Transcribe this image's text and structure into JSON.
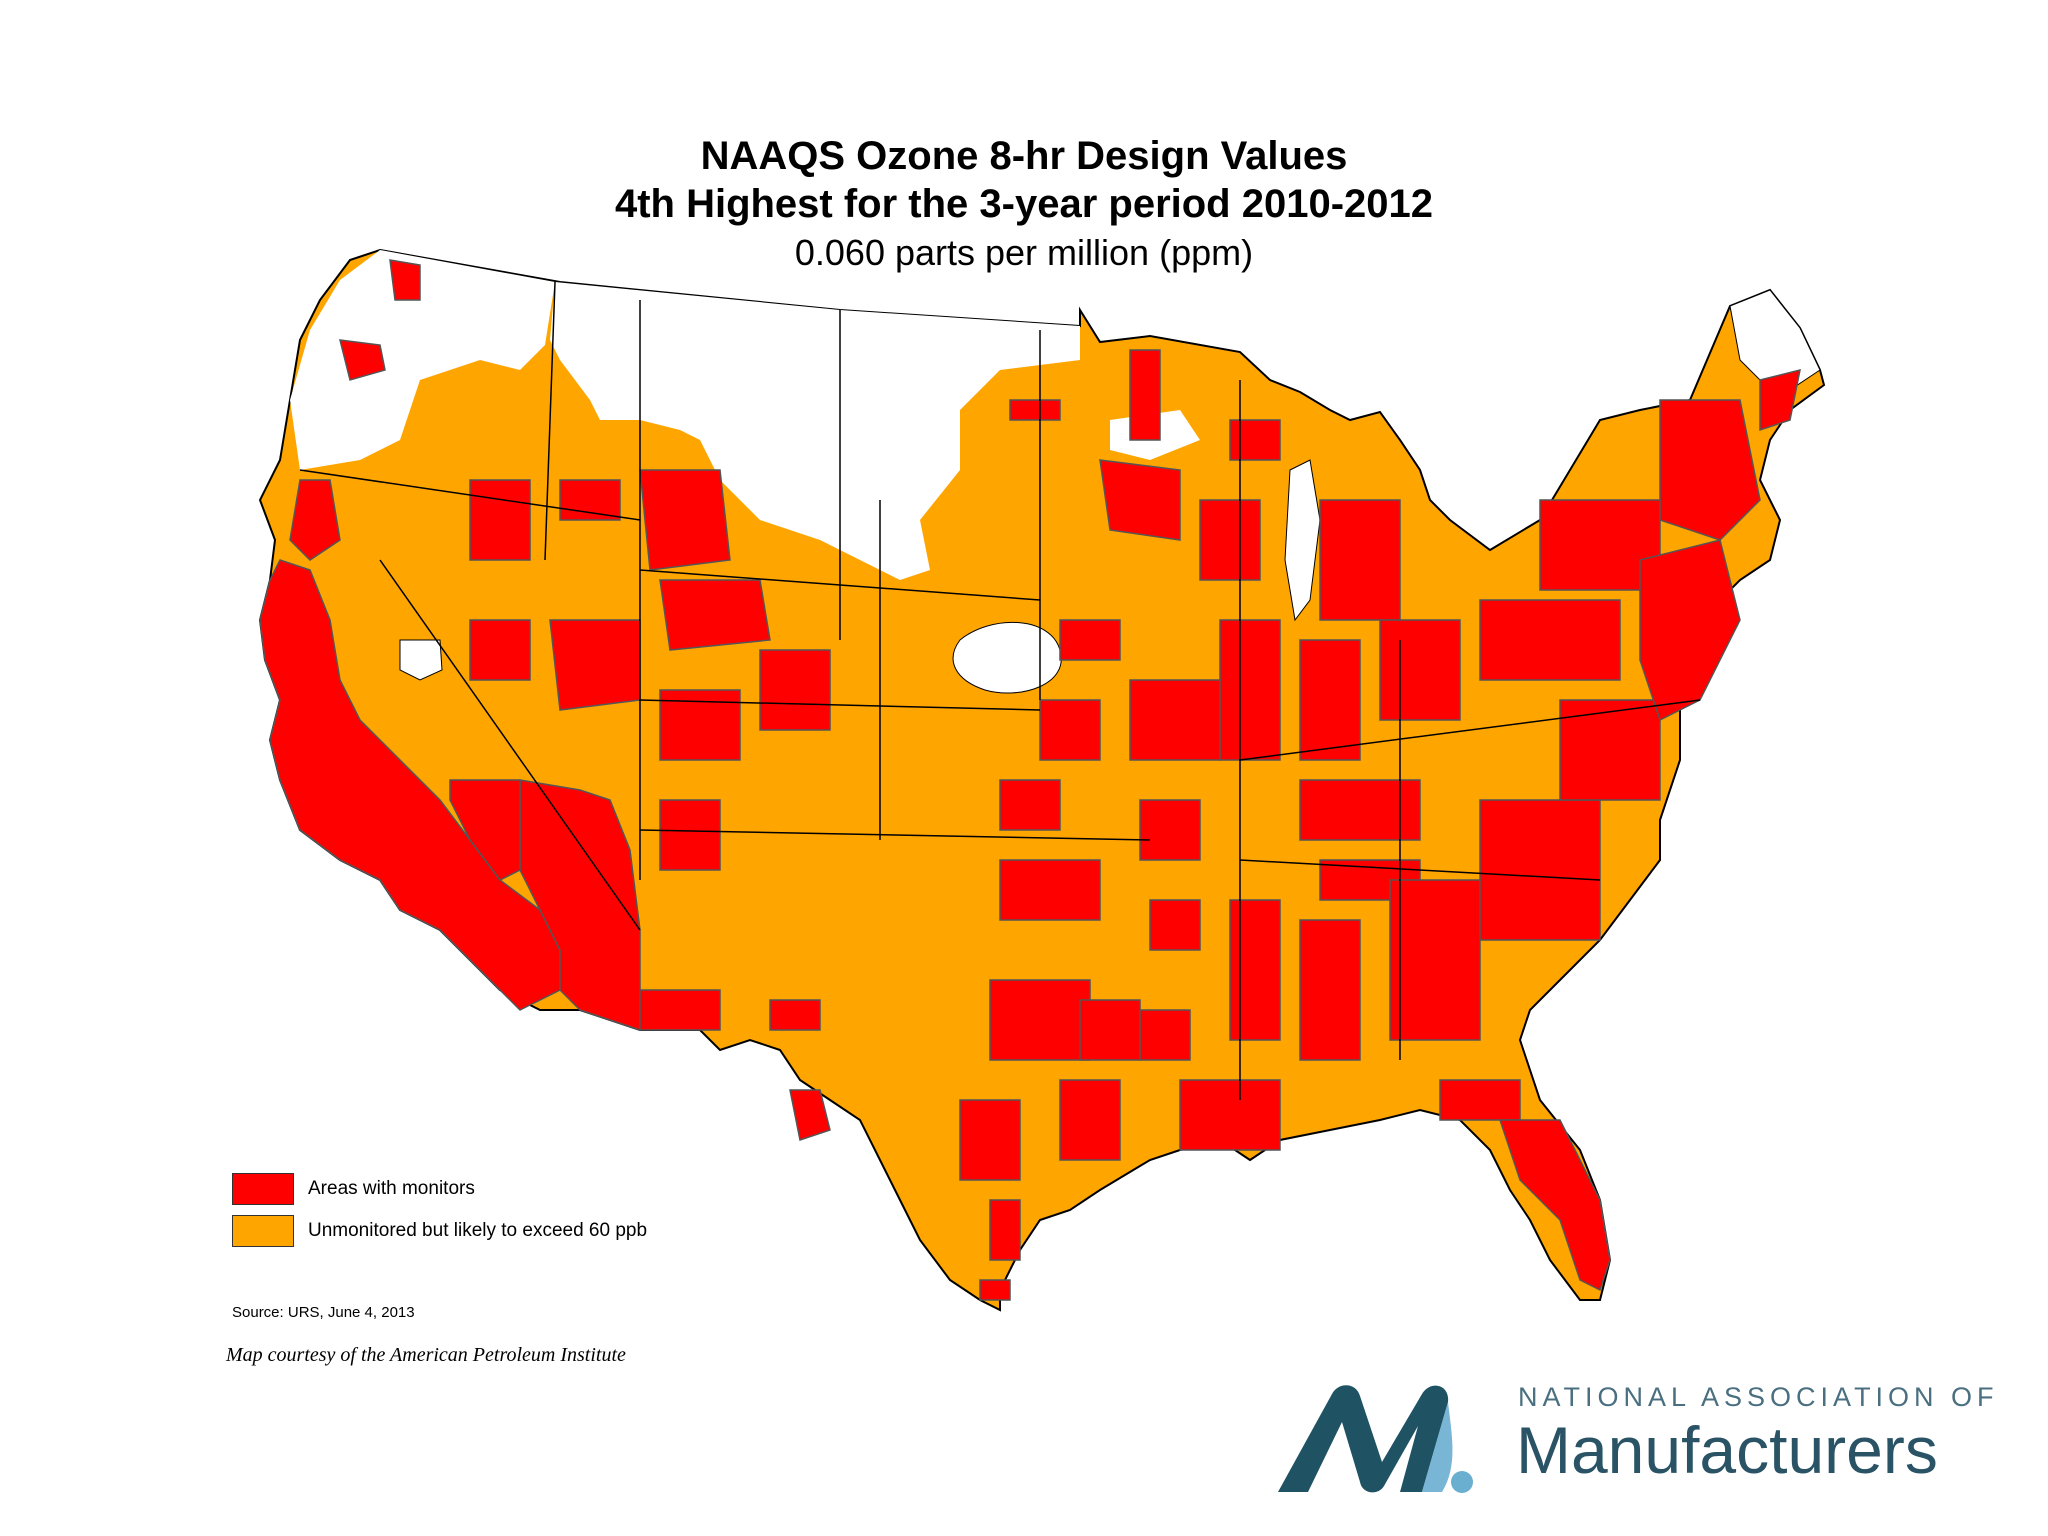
{
  "map": {
    "title": "NAAQS Ozone 8-hr Design Values",
    "title_line2": "4th Highest for the 3-year period 2010-2012",
    "subtitle": "0.060 parts per million (ppm)",
    "region": "Contiguous United States",
    "colors": {
      "monitored": "#ff0000",
      "likely_exceed": "#ffa500",
      "below": "#ffffff",
      "border": "#555555",
      "state_line": "#000000"
    },
    "legend": [
      {
        "label": "Areas with monitors",
        "color": "#ff0000"
      },
      {
        "label": "Unmonitored but likely to exceed 60 ppb",
        "color": "#ffa500"
      }
    ],
    "source": "Source:  URS, June 4, 2013",
    "courtesy": "Map courtesy of the American Petroleum Institute"
  },
  "logo": {
    "line1": "NATIONAL ASSOCIATION OF",
    "line2": "Manufacturers",
    "icon": "nam-m-icon",
    "colors": {
      "dark": "#1f5364",
      "light": "#6aaed0"
    }
  }
}
